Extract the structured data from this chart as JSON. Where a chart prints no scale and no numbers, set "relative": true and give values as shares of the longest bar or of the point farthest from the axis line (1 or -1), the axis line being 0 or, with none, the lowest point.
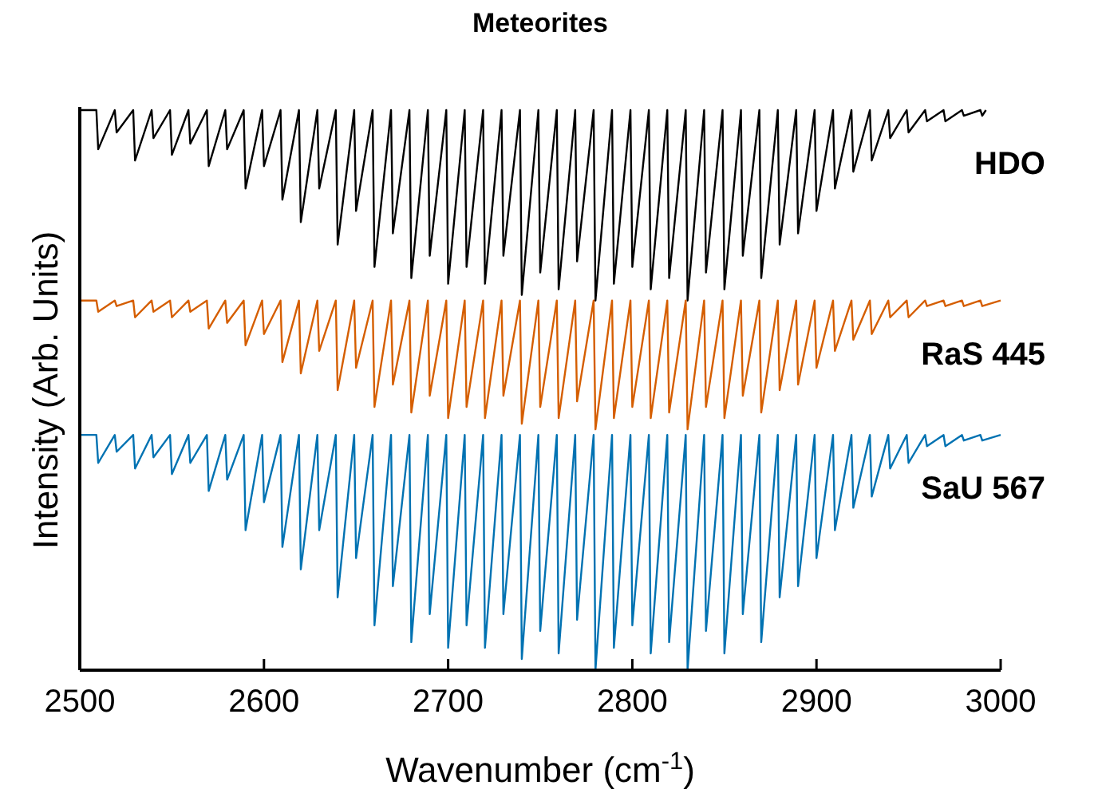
{
  "chart_data": {
    "type": "line",
    "title": "Meteorites",
    "xlabel": "Wavenumber (cm$^{-1}$)",
    "ylabel": "Intensity (Arb. Units)",
    "relative": true,
    "legend": false,
    "grid": false,
    "xlim": [
      2500,
      3000
    ],
    "xticks": [
      2500,
      2600,
      2700,
      2800,
      2900,
      3000
    ],
    "series": [
      {
        "name": "HDO",
        "color": "#000000",
        "x": [
          2500,
          2509,
          2510,
          2519,
          2520,
          2529,
          2530,
          2539,
          2540,
          2549,
          2550,
          2559,
          2560,
          2569,
          2570,
          2579,
          2580,
          2589,
          2590,
          2599,
          2600,
          2609,
          2610,
          2619,
          2620,
          2629,
          2630,
          2639,
          2640,
          2649,
          2650,
          2659,
          2660,
          2669,
          2670,
          2679,
          2680,
          2689,
          2690,
          2699,
          2700,
          2709,
          2710,
          2719,
          2720,
          2729,
          2730,
          2739,
          2740,
          2749,
          2750,
          2759,
          2760,
          2769,
          2770,
          2779,
          2780,
          2789,
          2790,
          2799,
          2800,
          2809,
          2810,
          2819,
          2820,
          2829,
          2830,
          2839,
          2840,
          2849,
          2850,
          2859,
          2860,
          2869,
          2870,
          2879,
          2880,
          2889,
          2890,
          2899,
          2900,
          2909,
          2910,
          2919,
          2920,
          2929,
          2930,
          2939,
          2940,
          2949,
          2950,
          2959,
          2960,
          2969,
          2970,
          2979,
          2980,
          2989,
          2990,
          2992
        ],
        "values": [
          1,
          1,
          0.93,
          1,
          0.96,
          1,
          0.91,
          1,
          0.95,
          1,
          0.92,
          1,
          0.94,
          1,
          0.9,
          1,
          0.93,
          1,
          0.86,
          1,
          0.9,
          1,
          0.84,
          1,
          0.8,
          1,
          0.86,
          1,
          0.76,
          1,
          0.82,
          1,
          0.72,
          1,
          0.78,
          1,
          0.7,
          1,
          0.74,
          1,
          0.69,
          1,
          0.72,
          1,
          0.69,
          1,
          0.74,
          1,
          0.67,
          1,
          0.71,
          1,
          0.68,
          1,
          0.73,
          1,
          0.66,
          1,
          0.69,
          1,
          0.72,
          1,
          0.68,
          1,
          0.7,
          1,
          0.66,
          1,
          0.71,
          1,
          0.68,
          1,
          0.74,
          1,
          0.7,
          1,
          0.76,
          1,
          0.78,
          1,
          0.82,
          1,
          0.86,
          1,
          0.89,
          1,
          0.91,
          1,
          0.95,
          1,
          0.96,
          1,
          0.98,
          1,
          0.98,
          1,
          0.99,
          1,
          0.99,
          1
        ]
      },
      {
        "name": "RaS 445",
        "color": "#d55e00",
        "x": [
          2500,
          2509,
          2510,
          2519,
          2520,
          2529,
          2530,
          2539,
          2540,
          2549,
          2550,
          2559,
          2560,
          2569,
          2570,
          2579,
          2580,
          2589,
          2590,
          2599,
          2600,
          2609,
          2610,
          2619,
          2620,
          2629,
          2630,
          2639,
          2640,
          2649,
          2650,
          2659,
          2660,
          2669,
          2670,
          2679,
          2680,
          2689,
          2690,
          2699,
          2700,
          2709,
          2710,
          2719,
          2720,
          2729,
          2730,
          2739,
          2740,
          2749,
          2750,
          2759,
          2760,
          2769,
          2770,
          2779,
          2780,
          2789,
          2790,
          2799,
          2800,
          2809,
          2810,
          2819,
          2820,
          2829,
          2830,
          2839,
          2840,
          2849,
          2850,
          2859,
          2860,
          2869,
          2870,
          2879,
          2880,
          2889,
          2890,
          2899,
          2900,
          2909,
          2910,
          2919,
          2920,
          2929,
          2930,
          2939,
          2940,
          2949,
          2950,
          2959,
          2960,
          2969,
          2970,
          2979,
          2980,
          2989,
          2990,
          3000
        ],
        "values": [
          0.66,
          0.66,
          0.64,
          0.66,
          0.65,
          0.66,
          0.63,
          0.66,
          0.64,
          0.66,
          0.63,
          0.66,
          0.64,
          0.66,
          0.61,
          0.66,
          0.62,
          0.66,
          0.58,
          0.66,
          0.6,
          0.66,
          0.55,
          0.66,
          0.53,
          0.66,
          0.57,
          0.66,
          0.5,
          0.66,
          0.54,
          0.66,
          0.47,
          0.66,
          0.51,
          0.66,
          0.46,
          0.66,
          0.49,
          0.66,
          0.45,
          0.66,
          0.47,
          0.66,
          0.45,
          0.66,
          0.49,
          0.66,
          0.44,
          0.66,
          0.47,
          0.66,
          0.45,
          0.66,
          0.48,
          0.66,
          0.43,
          0.66,
          0.45,
          0.66,
          0.47,
          0.66,
          0.45,
          0.66,
          0.46,
          0.66,
          0.43,
          0.66,
          0.47,
          0.66,
          0.45,
          0.66,
          0.49,
          0.66,
          0.46,
          0.66,
          0.5,
          0.66,
          0.51,
          0.66,
          0.54,
          0.66,
          0.57,
          0.66,
          0.59,
          0.66,
          0.6,
          0.66,
          0.63,
          0.66,
          0.63,
          0.66,
          0.65,
          0.66,
          0.65,
          0.66,
          0.65,
          0.66,
          0.65,
          0.66
        ]
      },
      {
        "name": "SaU 567",
        "color": "#0072b2",
        "x": [
          2500,
          2509,
          2510,
          2519,
          2520,
          2529,
          2530,
          2539,
          2540,
          2549,
          2550,
          2559,
          2560,
          2569,
          2570,
          2579,
          2580,
          2589,
          2590,
          2599,
          2600,
          2609,
          2610,
          2619,
          2620,
          2629,
          2630,
          2639,
          2640,
          2649,
          2650,
          2659,
          2660,
          2669,
          2670,
          2679,
          2680,
          2689,
          2690,
          2699,
          2700,
          2709,
          2710,
          2719,
          2720,
          2729,
          2730,
          2739,
          2740,
          2749,
          2750,
          2759,
          2760,
          2769,
          2770,
          2779,
          2780,
          2789,
          2790,
          2799,
          2800,
          2809,
          2810,
          2819,
          2820,
          2829,
          2830,
          2839,
          2840,
          2849,
          2850,
          2859,
          2860,
          2869,
          2870,
          2879,
          2880,
          2889,
          2890,
          2899,
          2900,
          2909,
          2910,
          2919,
          2920,
          2929,
          2930,
          2939,
          2940,
          2949,
          2950,
          2959,
          2960,
          2969,
          2970,
          2979,
          2980,
          2989,
          2990,
          3000
        ],
        "values": [
          0.42,
          0.42,
          0.37,
          0.42,
          0.39,
          0.42,
          0.36,
          0.42,
          0.38,
          0.42,
          0.35,
          0.42,
          0.37,
          0.42,
          0.32,
          0.42,
          0.34,
          0.42,
          0.25,
          0.42,
          0.3,
          0.42,
          0.22,
          0.42,
          0.18,
          0.42,
          0.25,
          0.42,
          0.13,
          0.42,
          0.2,
          0.42,
          0.08,
          0.42,
          0.15,
          0.42,
          0.05,
          0.42,
          0.1,
          0.42,
          0.04,
          0.42,
          0.08,
          0.42,
          0.04,
          0.42,
          0.1,
          0.42,
          0.02,
          0.42,
          0.07,
          0.42,
          0.03,
          0.42,
          0.09,
          0.42,
          0.0,
          0.42,
          0.04,
          0.42,
          0.08,
          0.42,
          0.03,
          0.42,
          0.05,
          0.42,
          0.0,
          0.42,
          0.07,
          0.42,
          0.03,
          0.42,
          0.1,
          0.42,
          0.05,
          0.42,
          0.13,
          0.42,
          0.15,
          0.42,
          0.2,
          0.42,
          0.25,
          0.42,
          0.29,
          0.42,
          0.31,
          0.42,
          0.36,
          0.42,
          0.37,
          0.42,
          0.4,
          0.42,
          0.4,
          0.42,
          0.41,
          0.42,
          0.41,
          0.42
        ]
      }
    ]
  }
}
